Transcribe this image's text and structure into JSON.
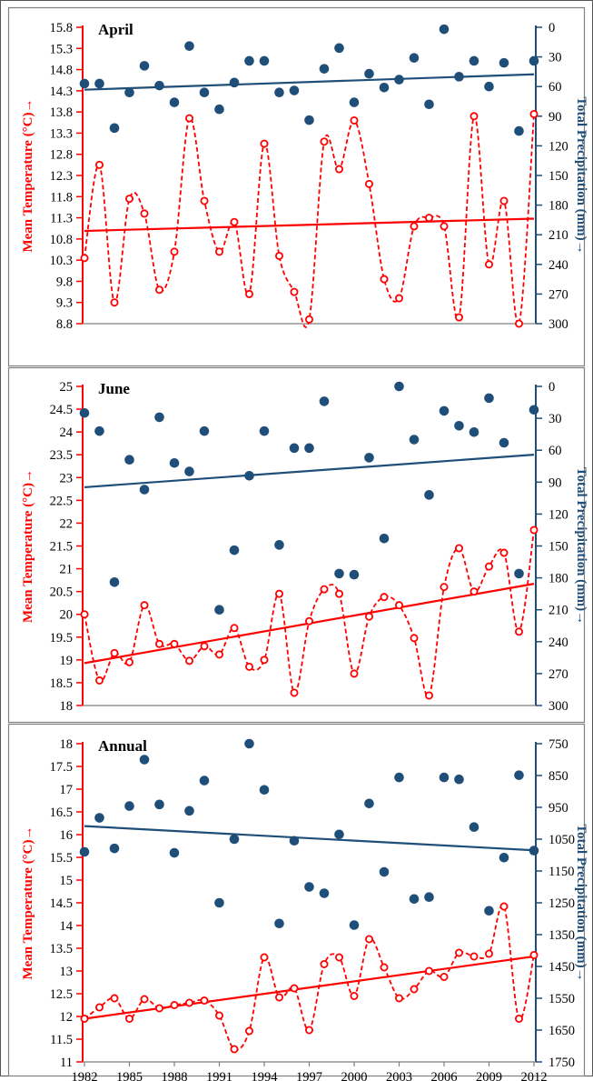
{
  "chart_data": [
    {
      "type": "line",
      "title": "April",
      "ylabel": "Mean Temperature (°C)→",
      "y2label": "Total Precipitation (mm)→",
      "ylim": [
        8.8,
        15.8
      ],
      "yticks": [
        8.8,
        9.3,
        9.8,
        10.3,
        10.8,
        11.3,
        11.8,
        12.3,
        12.8,
        13.3,
        13.8,
        14.3,
        14.8,
        15.3,
        15.8
      ],
      "ytick_labels": [
        "8.8",
        "9.3",
        "9.8",
        "10.3",
        "10.8",
        "11.3",
        "11.8",
        "12.3",
        "12.8",
        "13.3",
        "13.8",
        "14.3",
        "14.8",
        "15.3",
        "15.8"
      ],
      "y2lim": [
        0,
        300
      ],
      "y2_inverted": true,
      "y2ticks": [
        0,
        30,
        60,
        90,
        120,
        150,
        180,
        210,
        240,
        270,
        300
      ],
      "y2tick_labels": [
        "0",
        "30",
        "60",
        "90",
        "120",
        "150",
        "180",
        "210",
        "240",
        "270",
        "300"
      ],
      "x": [
        1982,
        1983,
        1984,
        1985,
        1986,
        1987,
        1988,
        1989,
        1990,
        1991,
        1992,
        1993,
        1994,
        1995,
        1996,
        1997,
        1998,
        1999,
        2000,
        2001,
        2002,
        2003,
        2004,
        2005,
        2006,
        2007,
        2008,
        2009,
        2010,
        2011,
        2012
      ],
      "temperature": [
        10.35,
        12.55,
        9.3,
        11.75,
        11.4,
        9.6,
        10.5,
        13.65,
        11.7,
        10.5,
        11.2,
        9.5,
        13.05,
        10.4,
        9.55,
        8.9,
        13.1,
        12.45,
        13.6,
        12.1,
        9.85,
        9.4,
        11.1,
        11.3,
        11.1,
        8.95,
        13.7,
        10.2,
        11.7,
        8.8,
        13.75
      ],
      "precipitation": [
        57,
        57,
        102,
        66,
        39,
        59,
        76,
        19,
        66,
        83,
        56,
        34,
        34,
        66,
        64,
        94,
        42,
        21,
        76,
        47,
        61,
        53,
        31,
        78,
        2,
        50,
        34,
        60,
        36,
        105,
        34
      ],
      "temperature_trend": [
        10.99,
        11.28
      ],
      "precipitation_trend": [
        63.2,
        47.6
      ],
      "colors": {
        "temperature": "#ff0000",
        "precipitation": "#1f4e79"
      }
    },
    {
      "type": "line",
      "title": "June",
      "ylabel": "Mean Temperature (°C)→",
      "y2label": "Total Precipitation (mm)→",
      "ylim": [
        18,
        25
      ],
      "yticks": [
        18,
        18.5,
        19,
        19.5,
        20,
        20.5,
        21,
        21.5,
        22,
        22.5,
        23,
        23.5,
        24,
        24.5,
        25
      ],
      "ytick_labels": [
        "18",
        "18.5",
        "19",
        "19.5",
        "20",
        "20.5",
        "21",
        "21.5",
        "22",
        "22.5",
        "23",
        "23.5",
        "24",
        "24.5",
        "25"
      ],
      "y2lim": [
        0,
        300
      ],
      "y2_inverted": true,
      "y2ticks": [
        0,
        30,
        60,
        90,
        120,
        150,
        180,
        210,
        240,
        270,
        300
      ],
      "y2tick_labels": [
        "0",
        "30",
        "60",
        "90",
        "120",
        "150",
        "180",
        "210",
        "240",
        "270",
        "300"
      ],
      "x": [
        1982,
        1983,
        1984,
        1985,
        1986,
        1987,
        1988,
        1989,
        1990,
        1991,
        1992,
        1993,
        1994,
        1995,
        1996,
        1997,
        1998,
        1999,
        2000,
        2001,
        2002,
        2003,
        2004,
        2005,
        2006,
        2007,
        2008,
        2009,
        2010,
        2011,
        2012
      ],
      "temperature": [
        20,
        18.55,
        19.15,
        18.95,
        20.2,
        19.35,
        19.35,
        18.98,
        19.3,
        19.12,
        19.7,
        18.85,
        19,
        20.45,
        18.28,
        19.85,
        20.55,
        20.45,
        18.7,
        19.95,
        20.38,
        20.2,
        19.48,
        18.22,
        20.6,
        21.45,
        20.5,
        21.05,
        21.35,
        19.62,
        21.85
      ],
      "precipitation": [
        25,
        42,
        184,
        69,
        97,
        29,
        72,
        80,
        42,
        210,
        154,
        84,
        42,
        149,
        58,
        58,
        14,
        176,
        177,
        67,
        143,
        0,
        50,
        102,
        23,
        37,
        43,
        11,
        53,
        176,
        22
      ],
      "temperature_trend": [
        18.93,
        20.67
      ],
      "precipitation_trend": [
        94.8,
        64.2
      ],
      "colors": {
        "temperature": "#ff0000",
        "precipitation": "#1f4e79"
      }
    },
    {
      "type": "line",
      "title": "Annual",
      "ylabel": "Mean Temperature (°C)→",
      "y2label": "Total Precipitation (mm)→",
      "ylim": [
        11,
        18
      ],
      "yticks": [
        11,
        11.5,
        12,
        12.5,
        13,
        13.5,
        14,
        14.5,
        15,
        15.5,
        16,
        16.5,
        17,
        17.5,
        18
      ],
      "ytick_labels": [
        "11",
        "11.5",
        "12",
        "12.5",
        "13",
        "13.5",
        "14",
        "14.5",
        "15",
        "15.5",
        "16",
        "16.5",
        "17",
        "17.5",
        "18"
      ],
      "y2lim": [
        750,
        1750
      ],
      "y2_inverted": true,
      "y2ticks": [
        750,
        850,
        950,
        1050,
        1150,
        1250,
        1350,
        1450,
        1550,
        1650,
        1750
      ],
      "y2tick_labels": [
        "750",
        "850",
        "950",
        "1050",
        "1150",
        "1250",
        "1350",
        "1450",
        "1550",
        "1650",
        "1750"
      ],
      "x": [
        1982,
        1983,
        1984,
        1985,
        1986,
        1987,
        1988,
        1989,
        1990,
        1991,
        1992,
        1993,
        1994,
        1995,
        1996,
        1997,
        1998,
        1999,
        2000,
        2001,
        2002,
        2003,
        2004,
        2005,
        2006,
        2007,
        2008,
        2009,
        2010,
        2011,
        2012
      ],
      "temperature": [
        11.95,
        12.2,
        12.4,
        11.95,
        12.38,
        12.18,
        12.25,
        12.3,
        12.35,
        12.02,
        11.28,
        11.68,
        13.3,
        12.42,
        12.62,
        11.7,
        13.15,
        13.3,
        12.45,
        13.7,
        13.08,
        12.4,
        12.6,
        13,
        12.87,
        13.4,
        13.32,
        13.38,
        14.42,
        11.95,
        13.35
      ],
      "precipitation": [
        1090,
        983,
        1079,
        946,
        800,
        941,
        1093,
        961,
        866,
        1250,
        1050,
        750,
        895,
        1315,
        1055,
        1200,
        1220,
        1035,
        1320,
        938,
        1153,
        856,
        1238,
        1232,
        856,
        862,
        1012,
        1275,
        1108,
        849,
        1086
      ],
      "temperature_trend": [
        11.95,
        13.32
      ],
      "precipitation_trend": [
        1009,
        1085
      ],
      "colors": {
        "temperature": "#ff0000",
        "precipitation": "#1f4e79"
      }
    }
  ],
  "x_axis": {
    "ticks": [
      1982,
      1985,
      1988,
      1991,
      1994,
      1997,
      2000,
      2003,
      2006,
      2009,
      2012
    ],
    "tick_labels": [
      "1982",
      "1985",
      "1988",
      "1991",
      "1994",
      "1997",
      "2000",
      "2003",
      "2006",
      "2009",
      "2012"
    ]
  }
}
